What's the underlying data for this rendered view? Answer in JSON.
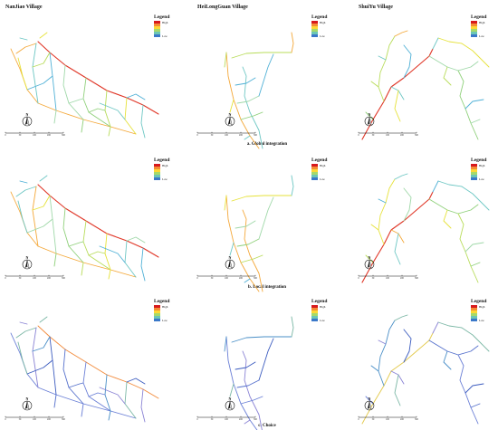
{
  "villages": [
    "NanJiao Village",
    "HeiLongGuan Village",
    "ShuiYu Village"
  ],
  "legend": {
    "title": "Legend",
    "high": "High",
    "low": "Low"
  },
  "captions": [
    "a. Global integration",
    "b. Local integration",
    "c. Choice"
  ],
  "north_label": "N",
  "scale_labels": [
    "0",
    "50",
    "100",
    "200",
    "300"
  ],
  "ramp_colors": [
    "#d7191c",
    "#f48c35",
    "#fdd835",
    "#a6d96a",
    "#6cc6b5",
    "#3a78c9"
  ],
  "line_palettes": {
    "integration": [
      "#8fd07a",
      "#b8dc5a",
      "#e6e23a",
      "#6ec7c4",
      "#4fb0d6",
      "#9fd8a8"
    ],
    "choice": [
      "#3b5bbf",
      "#5570cc",
      "#6a7fd6",
      "#4a8fc7",
      "#7bb7a5",
      "#8a83d4"
    ]
  }
}
